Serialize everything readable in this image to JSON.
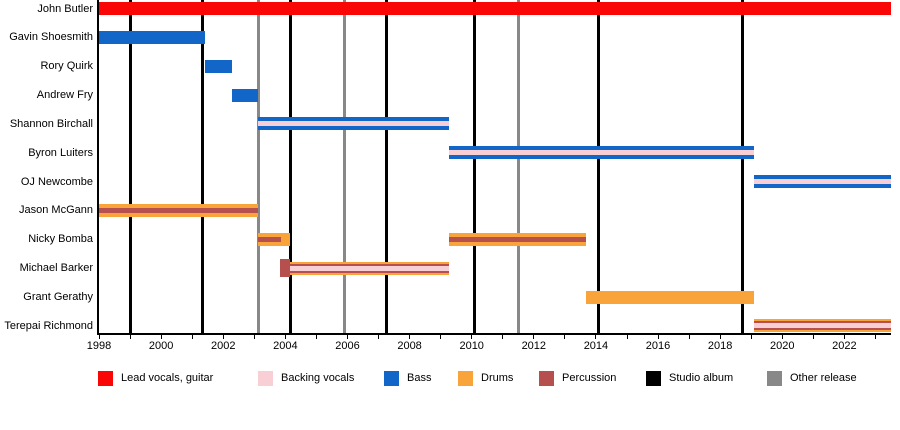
{
  "chart_data": {
    "type": "bar",
    "subtype": "gantt-band-membership-timeline",
    "title": "",
    "x_axis": {
      "min": 1998,
      "max": 2023.5,
      "minor_tick_interval": 1,
      "label_interval": 2,
      "tick_labels": [
        "1998",
        "2000",
        "2002",
        "2004",
        "2006",
        "2008",
        "2010",
        "2012",
        "2014",
        "2016",
        "2018",
        "2020",
        "2022"
      ]
    },
    "colors": {
      "lead_vocals_guitar": "#f90606",
      "backing_vocals": "#f9cfd6",
      "bass": "#1266c8",
      "drums": "#f9a43b",
      "percussion": "#b5504e",
      "studio_album": "#000000",
      "other_release": "#888888"
    },
    "members": [
      {
        "name": "John Butler",
        "segments": [
          {
            "start": 1998.0,
            "end": 2023.5,
            "roles": [
              "lead_vocals_guitar"
            ]
          }
        ]
      },
      {
        "name": "Gavin Shoesmith",
        "segments": [
          {
            "start": 1998.0,
            "end": 2001.42,
            "roles": [
              "bass"
            ]
          }
        ]
      },
      {
        "name": "Rory Quirk",
        "segments": [
          {
            "start": 2001.42,
            "end": 2002.28,
            "roles": [
              "bass"
            ]
          }
        ]
      },
      {
        "name": "Andrew Fry",
        "segments": [
          {
            "start": 2002.28,
            "end": 2003.13,
            "roles": [
              "bass"
            ]
          }
        ]
      },
      {
        "name": "Shannon Birchall",
        "segments": [
          {
            "start": 2003.13,
            "end": 2009.26,
            "roles": [
              "bass",
              "backing_vocals"
            ]
          }
        ]
      },
      {
        "name": "Byron Luiters",
        "segments": [
          {
            "start": 2009.26,
            "end": 2019.08,
            "roles": [
              "bass",
              "backing_vocals"
            ]
          }
        ]
      },
      {
        "name": "OJ Newcombe",
        "segments": [
          {
            "start": 2019.08,
            "end": 2023.5,
            "roles": [
              "bass",
              "backing_vocals"
            ]
          }
        ]
      },
      {
        "name": "Jason McGann",
        "segments": [
          {
            "start": 1998.0,
            "end": 2003.13,
            "roles": [
              "drums",
              "percussion"
            ]
          }
        ]
      },
      {
        "name": "Nicky Bomba",
        "segments": [
          {
            "start": 2003.13,
            "end": 2003.87,
            "roles": [
              "drums",
              "percussion"
            ]
          },
          {
            "start": 2003.87,
            "end": 2004.15,
            "roles": [
              "drums"
            ]
          },
          {
            "start": 2009.26,
            "end": 2013.67,
            "roles": [
              "drums",
              "percussion"
            ]
          }
        ]
      },
      {
        "name": "Michael Barker",
        "segments": [
          {
            "start": 2003.82,
            "end": 2004.15,
            "roles": [
              "percussion"
            ],
            "tall": true
          },
          {
            "start": 2004.15,
            "end": 2009.26,
            "roles": [
              "drums",
              "percussion",
              "backing_vocals"
            ]
          }
        ]
      },
      {
        "name": "Grant Gerathy",
        "segments": [
          {
            "start": 2013.67,
            "end": 2019.08,
            "roles": [
              "drums"
            ]
          }
        ]
      },
      {
        "name": "Terepai Richmond",
        "segments": [
          {
            "start": 2019.08,
            "end": 2023.5,
            "roles": [
              "drums",
              "percussion",
              "backing_vocals"
            ]
          }
        ]
      }
    ],
    "events": {
      "studio_albums": [
        1999.0,
        2001.33,
        2004.18,
        2007.25,
        2010.1,
        2014.07,
        2018.72
      ],
      "other_releases": [
        2003.13,
        2005.9,
        2011.51
      ]
    }
  },
  "legend": {
    "items": [
      {
        "label": "Lead vocals, guitar",
        "color": "lead_vocals_guitar"
      },
      {
        "label": "Backing vocals",
        "color": "backing_vocals"
      },
      {
        "label": "Bass",
        "color": "bass"
      },
      {
        "label": "Drums",
        "color": "drums"
      },
      {
        "label": "Percussion",
        "color": "percussion"
      },
      {
        "label": "Studio album",
        "color": "studio_album"
      },
      {
        "label": "Other release",
        "color": "other_release"
      }
    ]
  }
}
